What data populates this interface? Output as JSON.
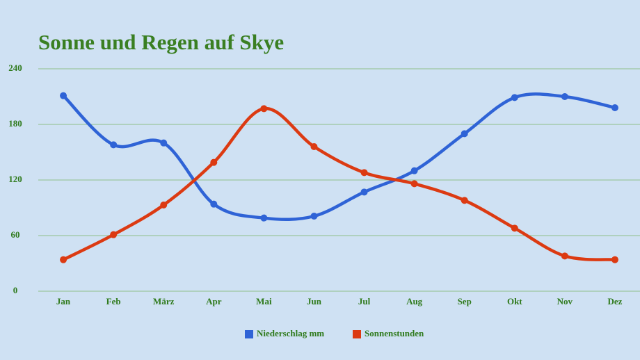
{
  "chart_data": {
    "type": "line",
    "title": "Sonne und Regen auf Skye",
    "categories": [
      "Jan",
      "Feb",
      "März",
      "Apr",
      "Mai",
      "Jun",
      "Jul",
      "Aug",
      "Sep",
      "Okt",
      "Nov",
      "Dez"
    ],
    "series": [
      {
        "name": "Niederschlag mm",
        "color": "#2f63d6",
        "values": [
          211,
          158,
          160,
          94,
          79,
          81,
          107,
          130,
          170,
          209,
          210,
          198
        ]
      },
      {
        "name": "Sonnenstunden",
        "color": "#dc3a12",
        "values": [
          34,
          61,
          93,
          139,
          197,
          156,
          128,
          116,
          98,
          68,
          38,
          34
        ]
      }
    ],
    "ylim": [
      0,
      240
    ],
    "yticks": [
      0,
      60,
      120,
      180,
      240
    ],
    "grid": true,
    "legend": "bottom",
    "smooth": true
  }
}
